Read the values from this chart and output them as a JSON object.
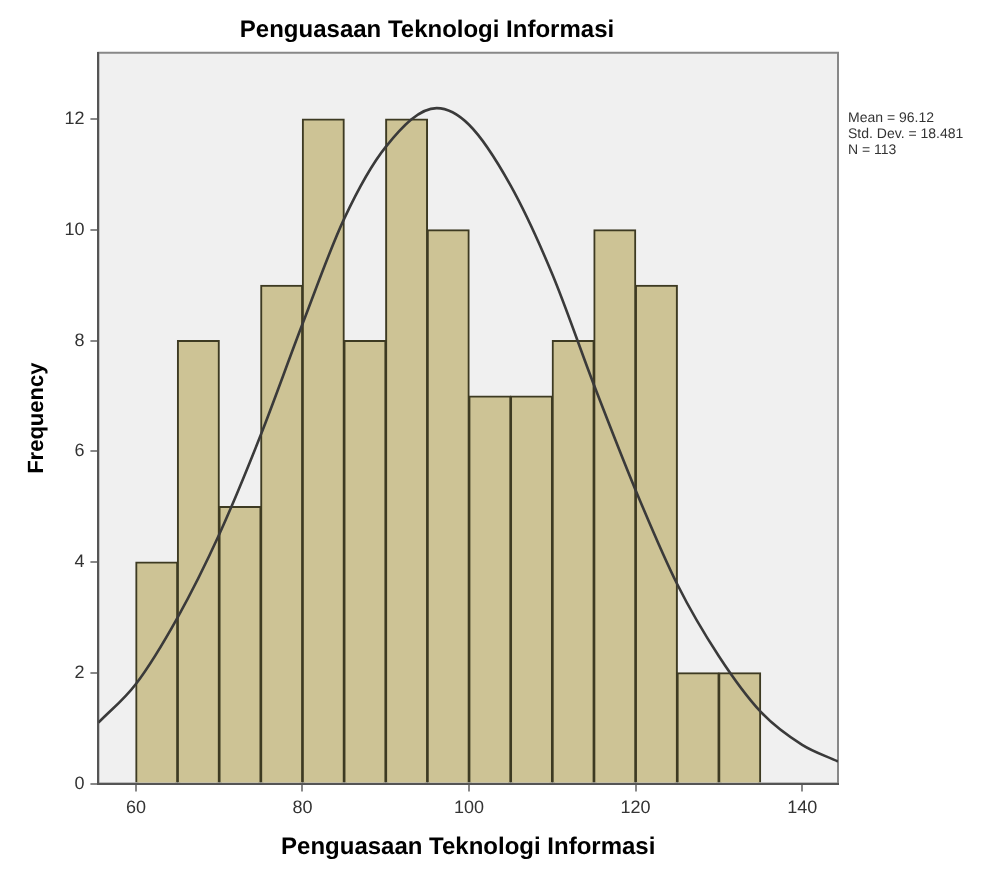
{
  "chart_data": {
    "type": "histogram",
    "title": "Penguasaan Teknologi Informasi",
    "xlabel": "Penguasaan Teknologi Informasi",
    "ylabel": "Frequency",
    "bins": [
      60,
      65,
      70,
      75,
      80,
      85,
      90,
      95,
      100,
      105,
      110,
      115,
      120,
      125,
      130,
      135
    ],
    "values": [
      4,
      8,
      5,
      9,
      12,
      8,
      12,
      10,
      7,
      7,
      8,
      10,
      9,
      2,
      2
    ],
    "color": "#cdc395",
    "series": [
      {
        "type": "line",
        "color": "#3a3a3a",
        "x": [
          55.5,
          60,
          65,
          70,
          75,
          80,
          85,
          90,
          96.12,
          100,
          105,
          110,
          115,
          120,
          125,
          130,
          135,
          140,
          144.3
        ],
        "values": [
          1.1,
          1.8,
          3.0,
          4.5,
          6.3,
          8.3,
          10.2,
          11.5,
          12.2,
          11.9,
          10.8,
          9.2,
          7.2,
          5.3,
          3.6,
          2.3,
          1.3,
          0.7,
          0.4
        ]
      }
    ],
    "xlim": [
      55.5,
      144.3
    ],
    "xticks": [
      60,
      80,
      100,
      120,
      140
    ],
    "ylim": [
      0,
      13.2
    ],
    "yticks": [
      0,
      2,
      4,
      6,
      8,
      10,
      12
    ],
    "grid": false,
    "legend": false,
    "marker": "none",
    "annotations": [
      "Mean = 96.12",
      "Std. Dev. = 18.481",
      "N = 113"
    ]
  }
}
